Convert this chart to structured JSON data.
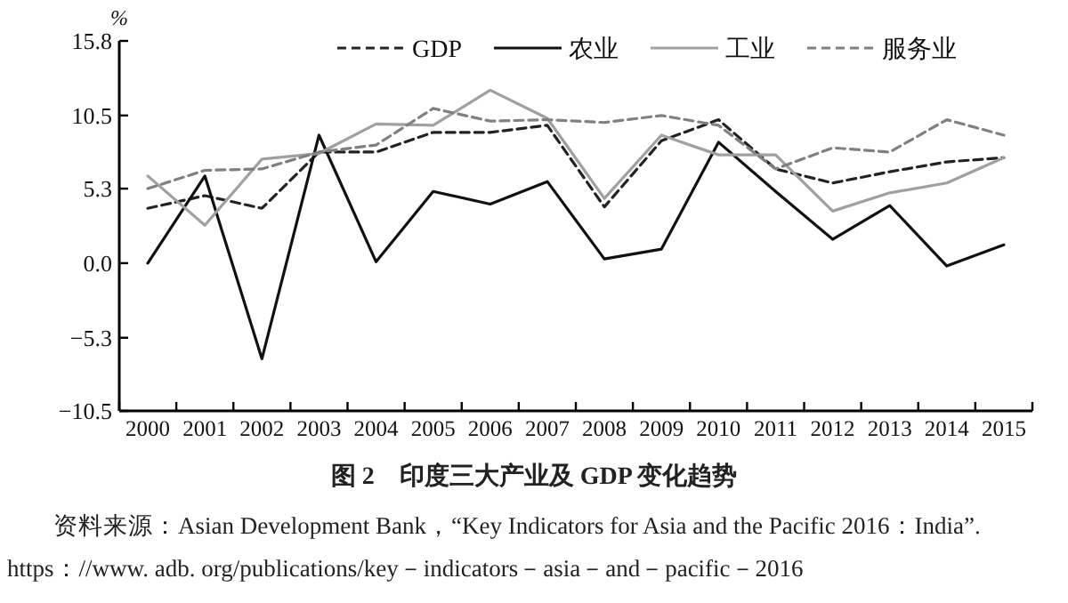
{
  "chart_data": {
    "type": "line",
    "title": "图 2　印度三大产业及 GDP 变化趋势",
    "ylabel": "%",
    "annotations": [
      "资料来源：Asian Development Bank，“Key Indicators for Asia and the Pacific 2016：India”. https：//www. adb. org/publications/key－indicators－asia－and－pacific－2016"
    ],
    "categories": [
      "2000",
      "2001",
      "2002",
      "2003",
      "2004",
      "2005",
      "2006",
      "2007",
      "2008",
      "2009",
      "2010",
      "2011",
      "2012",
      "2013",
      "2014",
      "2015"
    ],
    "ylim": [
      -10.5,
      15.8
    ],
    "yticks": [
      {
        "value": -10.5,
        "label": "−10.5"
      },
      {
        "value": -5.3,
        "label": "−5.3"
      },
      {
        "value": 0,
        "label": "0.0"
      },
      {
        "value": 5.3,
        "label": "5.3"
      },
      {
        "value": 10.5,
        "label": "10.5"
      },
      {
        "value": 15.8,
        "label": "15.8"
      }
    ],
    "legend": "top",
    "grid": false,
    "series": [
      {
        "name": "GDP",
        "color": "#222222",
        "line_style": "dashed",
        "values": [
          3.9,
          4.8,
          3.9,
          7.9,
          7.9,
          9.3,
          9.3,
          9.8,
          4.0,
          8.7,
          10.2,
          6.7,
          5.7,
          6.5,
          7.2,
          7.5
        ]
      },
      {
        "name": "农业",
        "color": "#111111",
        "line_style": "solid",
        "values": [
          0.0,
          6.2,
          -6.8,
          9.1,
          0.1,
          5.1,
          4.2,
          5.8,
          0.3,
          1.0,
          8.6,
          5.1,
          1.7,
          4.1,
          -0.2,
          1.3
        ]
      },
      {
        "name": "工业",
        "color": "#a0a0a0",
        "line_style": "solid",
        "values": [
          6.2,
          2.7,
          7.4,
          7.8,
          9.9,
          9.8,
          12.3,
          10.3,
          4.6,
          9.1,
          7.7,
          7.7,
          3.7,
          5.0,
          5.7,
          7.5
        ]
      },
      {
        "name": "服务业",
        "color": "#808080",
        "line_style": "dashed",
        "values": [
          5.3,
          6.6,
          6.7,
          7.9,
          8.4,
          11.0,
          10.1,
          10.2,
          10.0,
          10.5,
          9.8,
          6.7,
          8.2,
          7.9,
          10.2,
          9.1
        ]
      }
    ]
  }
}
